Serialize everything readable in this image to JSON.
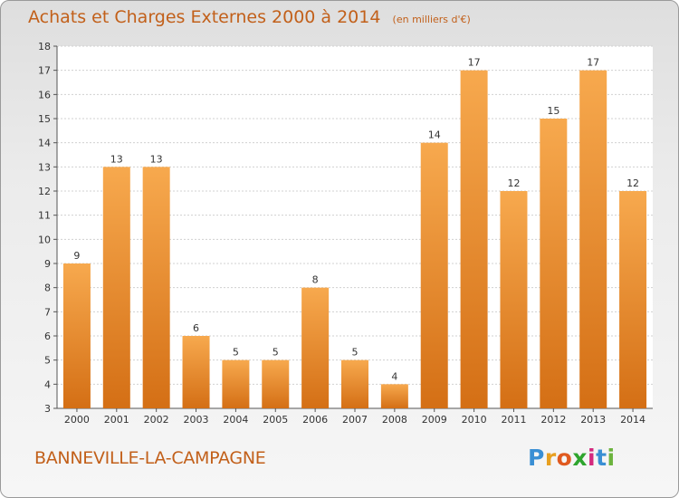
{
  "title": "Achats et Charges Externes 2000 à 2014",
  "subtitle": "(en milliers d'€)",
  "commune": "BANNEVILLE-LA-CAMPAGNE",
  "logo": {
    "letters": [
      "P",
      "r",
      "o",
      "x",
      "i",
      "t",
      "i"
    ],
    "colors": [
      "#3a8fd4",
      "#e8a020",
      "#e05a20",
      "#2ea52e",
      "#d42a7e",
      "#3a8fd4",
      "#6cb33e"
    ]
  },
  "colors": {
    "bar_light": "#f7a94e",
    "bar_dark": "#d46f15",
    "text": "#c2601a"
  },
  "chart_data": {
    "type": "bar",
    "categories": [
      "2000",
      "2001",
      "2002",
      "2003",
      "2004",
      "2005",
      "2006",
      "2007",
      "2008",
      "2009",
      "2010",
      "2011",
      "2012",
      "2013",
      "2014"
    ],
    "values": [
      9,
      13,
      13,
      6,
      5,
      5,
      8,
      5,
      4,
      14,
      17,
      12,
      15,
      17,
      12
    ],
    "ylim": [
      3,
      18
    ],
    "yticks": [
      3,
      4,
      5,
      6,
      7,
      8,
      9,
      10,
      11,
      12,
      13,
      14,
      15,
      16,
      17,
      18
    ],
    "grid": true,
    "data_labels": true
  }
}
